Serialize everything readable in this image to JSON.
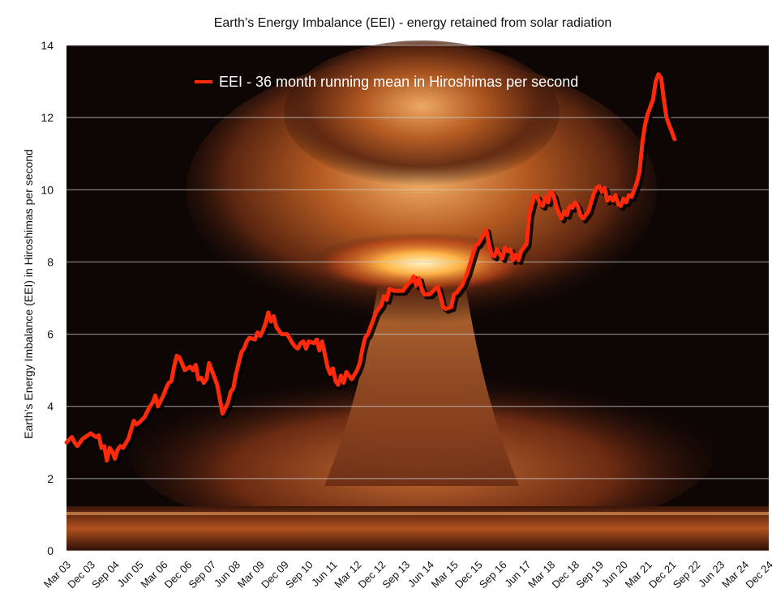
{
  "chart_data": {
    "type": "line",
    "title": "Earth’s Energy Imbalance (EEI) - energy retained from solar radiation",
    "xlabel": "",
    "ylabel": "Earth’s Energy Imbalance (EEI) in Hiroshimas per second",
    "ylim": [
      0,
      14
    ],
    "yticks": [
      0,
      2,
      4,
      6,
      8,
      10,
      12,
      14
    ],
    "grid": "horizontal",
    "legend_position": "top-center",
    "background": "mushroom-cloud photograph",
    "x_tick_labels": [
      "Mar 03",
      "Dec 03",
      "Sep 04",
      "Jun 05",
      "Mar 06",
      "Dec 06",
      "Sep 07",
      "Jun 08",
      "Mar 09",
      "Dec 09",
      "Sep 10",
      "Jun 11",
      "Mar 12",
      "Dec 12",
      "Sep 13",
      "Jun 14",
      "Mar 15",
      "Dec 15",
      "Sep 16",
      "Jun 17",
      "Mar 18",
      "Dec 18",
      "Sep 19",
      "Jun 20",
      "Mar 21",
      "Dec 21",
      "Sep 22",
      "Jun 23",
      "Mar 24",
      "Dec 24"
    ],
    "x_tick_months": [
      0,
      9,
      18,
      27,
      36,
      45,
      54,
      63,
      72,
      81,
      90,
      99,
      108,
      117,
      126,
      135,
      144,
      153,
      162,
      171,
      180,
      189,
      198,
      207,
      216,
      225,
      234,
      243,
      252,
      261
    ],
    "x_range_months": [
      0,
      261
    ],
    "x_note": "x values are months counted from Mar 03",
    "series": [
      {
        "name": "EEI - 36 month running mean in Hiroshimas per second",
        "color": "#ff2a0a",
        "points": [
          [
            0,
            3.0
          ],
          [
            2,
            3.15
          ],
          [
            3,
            3.0
          ],
          [
            4,
            2.9
          ],
          [
            6,
            3.1
          ],
          [
            8,
            3.2
          ],
          [
            9,
            3.25
          ],
          [
            10,
            3.2
          ],
          [
            11,
            3.15
          ],
          [
            12,
            3.2
          ],
          [
            13,
            2.85
          ],
          [
            14,
            2.9
          ],
          [
            15,
            2.5
          ],
          [
            16,
            2.85
          ],
          [
            17,
            2.75
          ],
          [
            18,
            2.55
          ],
          [
            19,
            2.8
          ],
          [
            20,
            2.9
          ],
          [
            21,
            2.85
          ],
          [
            23,
            3.1
          ],
          [
            25,
            3.6
          ],
          [
            26,
            3.5
          ],
          [
            27,
            3.55
          ],
          [
            29,
            3.7
          ],
          [
            30,
            3.85
          ],
          [
            31,
            4.0
          ],
          [
            32,
            4.1
          ],
          [
            33,
            4.3
          ],
          [
            34,
            4.0
          ],
          [
            36,
            4.3
          ],
          [
            37,
            4.5
          ],
          [
            38,
            4.65
          ],
          [
            39,
            4.7
          ],
          [
            40,
            5.1
          ],
          [
            41,
            5.4
          ],
          [
            42,
            5.35
          ],
          [
            44,
            5.0
          ],
          [
            46,
            5.1
          ],
          [
            47,
            5.0
          ],
          [
            48,
            5.15
          ],
          [
            49,
            4.75
          ],
          [
            50,
            4.8
          ],
          [
            51,
            4.65
          ],
          [
            52,
            4.75
          ],
          [
            53,
            5.2
          ],
          [
            54,
            5.0
          ],
          [
            56,
            4.6
          ],
          [
            58,
            3.8
          ],
          [
            60,
            4.1
          ],
          [
            61,
            4.4
          ],
          [
            62,
            4.5
          ],
          [
            63,
            4.9
          ],
          [
            65,
            5.5
          ],
          [
            66,
            5.6
          ],
          [
            67,
            5.8
          ],
          [
            68,
            5.9
          ],
          [
            70,
            5.85
          ],
          [
            71,
            6.05
          ],
          [
            72,
            5.95
          ],
          [
            73,
            6.1
          ],
          [
            74,
            6.3
          ],
          [
            75,
            6.6
          ],
          [
            76,
            6.35
          ],
          [
            77,
            6.5
          ],
          [
            78,
            6.2
          ],
          [
            80,
            6.0
          ],
          [
            82,
            6.0
          ],
          [
            84,
            5.75
          ],
          [
            85,
            5.65
          ],
          [
            86,
            5.6
          ],
          [
            87,
            5.75
          ],
          [
            88,
            5.8
          ],
          [
            89,
            5.6
          ],
          [
            90,
            5.8
          ],
          [
            92,
            5.75
          ],
          [
            93,
            5.85
          ],
          [
            94,
            5.55
          ],
          [
            95,
            5.8
          ],
          [
            96,
            5.45
          ],
          [
            97,
            5.1
          ],
          [
            98,
            4.9
          ],
          [
            99,
            5.05
          ],
          [
            100,
            4.7
          ],
          [
            101,
            4.6
          ],
          [
            102,
            4.85
          ],
          [
            103,
            4.65
          ],
          [
            104,
            4.95
          ],
          [
            106,
            4.75
          ],
          [
            108,
            5.0
          ],
          [
            109,
            5.2
          ],
          [
            110,
            5.6
          ],
          [
            111,
            5.9
          ],
          [
            112,
            6.0
          ],
          [
            114,
            6.4
          ],
          [
            115,
            6.6
          ],
          [
            116,
            6.7
          ],
          [
            117,
            6.8
          ],
          [
            118,
            7.05
          ],
          [
            119,
            6.95
          ],
          [
            120,
            7.25
          ],
          [
            122,
            7.2
          ],
          [
            123,
            7.2
          ],
          [
            125,
            7.2
          ],
          [
            127,
            7.4
          ],
          [
            128,
            7.45
          ],
          [
            129,
            7.6
          ],
          [
            130,
            7.35
          ],
          [
            131,
            7.55
          ],
          [
            132,
            7.25
          ],
          [
            133,
            7.1
          ],
          [
            135,
            7.1
          ],
          [
            137,
            7.25
          ],
          [
            138,
            7.3
          ],
          [
            139,
            7.05
          ],
          [
            140,
            6.75
          ],
          [
            141,
            6.7
          ],
          [
            143,
            6.75
          ],
          [
            144,
            7.1
          ],
          [
            145,
            7.15
          ],
          [
            147,
            7.35
          ],
          [
            149,
            7.7
          ],
          [
            150,
            7.95
          ],
          [
            151,
            8.2
          ],
          [
            152,
            8.45
          ],
          [
            153,
            8.5
          ],
          [
            155,
            8.75
          ],
          [
            156,
            8.9
          ],
          [
            157,
            8.5
          ],
          [
            158,
            8.2
          ],
          [
            159,
            8.15
          ],
          [
            160,
            8.35
          ],
          [
            162,
            8.1
          ],
          [
            163,
            8.4
          ],
          [
            164,
            8.3
          ],
          [
            165,
            8.35
          ],
          [
            166,
            8.05
          ],
          [
            167,
            8.2
          ],
          [
            168,
            8.05
          ],
          [
            169,
            8.3
          ],
          [
            171,
            8.5
          ],
          [
            172,
            9.3
          ],
          [
            173,
            9.6
          ],
          [
            174,
            9.85
          ],
          [
            175,
            9.8
          ],
          [
            176,
            9.6
          ],
          [
            177,
            9.55
          ],
          [
            178,
            9.8
          ],
          [
            179,
            9.65
          ],
          [
            180,
            9.95
          ],
          [
            181,
            9.85
          ],
          [
            182,
            9.55
          ],
          [
            183,
            9.35
          ],
          [
            184,
            9.2
          ],
          [
            185,
            9.4
          ],
          [
            186,
            9.3
          ],
          [
            187,
            9.55
          ],
          [
            188,
            9.5
          ],
          [
            189,
            9.65
          ],
          [
            190,
            9.55
          ],
          [
            191,
            9.3
          ],
          [
            192,
            9.2
          ],
          [
            193,
            9.3
          ],
          [
            194,
            9.4
          ],
          [
            196,
            9.9
          ],
          [
            197,
            10.05
          ],
          [
            198,
            10.1
          ],
          [
            199,
            9.95
          ],
          [
            200,
            10.05
          ],
          [
            201,
            9.7
          ],
          [
            202,
            9.8
          ],
          [
            203,
            9.7
          ],
          [
            204,
            9.85
          ],
          [
            205,
            9.6
          ],
          [
            206,
            9.55
          ],
          [
            207,
            9.75
          ],
          [
            208,
            9.65
          ],
          [
            209,
            9.85
          ],
          [
            210,
            9.8
          ],
          [
            212,
            10.2
          ],
          [
            213,
            10.5
          ],
          [
            214,
            11.3
          ],
          [
            215,
            11.8
          ],
          [
            216,
            12.1
          ],
          [
            217,
            12.3
          ],
          [
            218,
            12.5
          ],
          [
            219,
            13.0
          ],
          [
            220,
            13.2
          ],
          [
            221,
            13.1
          ],
          [
            222,
            12.5
          ],
          [
            223,
            12.0
          ],
          [
            224,
            11.8
          ],
          [
            225,
            11.6
          ],
          [
            226,
            11.4
          ]
        ]
      }
    ]
  }
}
